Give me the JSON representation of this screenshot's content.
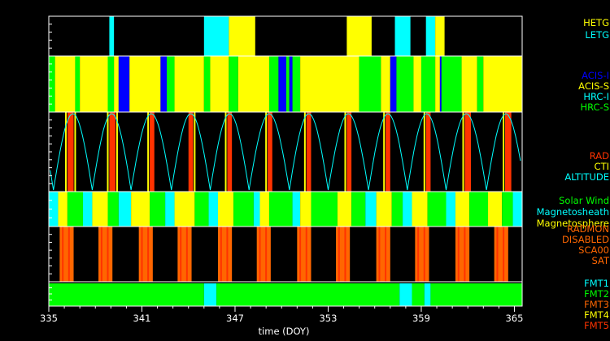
{
  "chart_data": {
    "type": "timeline",
    "xlabel": "time (DOY)",
    "xlim": [
      335,
      365.5
    ],
    "x_ticks": [
      335,
      341,
      347,
      353,
      359,
      365
    ],
    "x_tick_labels": [
      "335",
      "341",
      "347",
      "353",
      "359",
      "365"
    ],
    "panels": [
      {
        "id": "grating",
        "legend": [
          {
            "label": "HETG",
            "color": "#ffff00"
          },
          {
            "label": "LETG",
            "color": "#00ffff"
          }
        ],
        "segments": [
          {
            "start": 338.9,
            "end": 339.2,
            "label": "LETG"
          },
          {
            "start": 345.0,
            "end": 346.6,
            "label": "LETG"
          },
          {
            "start": 346.6,
            "end": 348.3,
            "label": "HETG"
          },
          {
            "start": 354.2,
            "end": 355.8,
            "label": "HETG"
          },
          {
            "start": 357.3,
            "end": 358.3,
            "label": "LETG"
          },
          {
            "start": 359.3,
            "end": 359.9,
            "label": "LETG"
          },
          {
            "start": 359.9,
            "end": 360.5,
            "label": "HETG"
          }
        ]
      },
      {
        "id": "instrument",
        "legend": [
          {
            "label": "ACIS-I",
            "color": "#0000ff"
          },
          {
            "label": "ACIS-S",
            "color": "#ffff00"
          },
          {
            "label": "HRC-I",
            "color": "#00ffff"
          },
          {
            "label": "HRC-S",
            "color": "#00ff00"
          }
        ],
        "segments": [
          {
            "start": 335.0,
            "end": 335.4,
            "label": "HRC-S"
          },
          {
            "start": 335.4,
            "end": 336.7,
            "label": "ACIS-S"
          },
          {
            "start": 336.7,
            "end": 337.0,
            "label": "HRC-S"
          },
          {
            "start": 337.0,
            "end": 338.8,
            "label": "ACIS-S"
          },
          {
            "start": 338.8,
            "end": 339.2,
            "label": "HRC-S"
          },
          {
            "start": 339.2,
            "end": 339.5,
            "label": "ACIS-S"
          },
          {
            "start": 339.5,
            "end": 340.2,
            "label": "ACIS-I"
          },
          {
            "start": 340.2,
            "end": 342.2,
            "label": "ACIS-S"
          },
          {
            "start": 342.2,
            "end": 342.6,
            "label": "ACIS-I"
          },
          {
            "start": 342.6,
            "end": 343.1,
            "label": "HRC-S"
          },
          {
            "start": 343.1,
            "end": 345.0,
            "label": "ACIS-S"
          },
          {
            "start": 345.0,
            "end": 345.4,
            "label": "HRC-S"
          },
          {
            "start": 345.4,
            "end": 346.6,
            "label": "ACIS-S"
          },
          {
            "start": 346.6,
            "end": 347.2,
            "label": "HRC-S"
          },
          {
            "start": 347.2,
            "end": 349.2,
            "label": "ACIS-S"
          },
          {
            "start": 349.2,
            "end": 349.8,
            "label": "HRC-S"
          },
          {
            "start": 349.8,
            "end": 350.3,
            "label": "ACIS-I"
          },
          {
            "start": 350.3,
            "end": 350.5,
            "label": "HRC-S"
          },
          {
            "start": 350.5,
            "end": 350.7,
            "label": "ACIS-I"
          },
          {
            "start": 350.7,
            "end": 351.2,
            "label": "HRC-S"
          },
          {
            "start": 351.2,
            "end": 355.0,
            "label": "ACIS-S"
          },
          {
            "start": 355.0,
            "end": 356.4,
            "label": "HRC-S"
          },
          {
            "start": 356.4,
            "end": 357.0,
            "label": "ACIS-S"
          },
          {
            "start": 357.0,
            "end": 357.4,
            "label": "ACIS-I"
          },
          {
            "start": 357.4,
            "end": 358.5,
            "label": "HRC-S"
          },
          {
            "start": 358.5,
            "end": 359.0,
            "label": "ACIS-S"
          },
          {
            "start": 359.0,
            "end": 359.9,
            "label": "HRC-S"
          },
          {
            "start": 359.9,
            "end": 360.2,
            "label": "ACIS-S"
          },
          {
            "start": 360.2,
            "end": 360.3,
            "label": "ACIS-I"
          },
          {
            "start": 360.3,
            "end": 361.6,
            "label": "HRC-S"
          },
          {
            "start": 361.6,
            "end": 362.6,
            "label": "ACIS-S"
          },
          {
            "start": 362.6,
            "end": 363.0,
            "label": "HRC-S"
          },
          {
            "start": 363.0,
            "end": 365.5,
            "label": "ACIS-S"
          }
        ]
      },
      {
        "id": "radiation",
        "legend": [
          {
            "label": "RAD",
            "color": "#ff3300"
          },
          {
            "label": "CTI",
            "color": "#ffff00"
          },
          {
            "label": "ALTITUDE",
            "color": "#00ffff"
          }
        ],
        "altitude_minima": [
          335.3,
          337.8,
          340.3,
          342.9,
          345.4,
          347.9,
          350.5,
          353.0,
          355.6,
          358.1,
          360.6,
          363.2
        ],
        "segments": [
          {
            "start": 336.2,
            "end": 336.6,
            "label": "RAD"
          },
          {
            "start": 338.9,
            "end": 339.3,
            "label": "RAD"
          },
          {
            "start": 341.5,
            "end": 341.8,
            "label": "RAD"
          },
          {
            "start": 344.0,
            "end": 344.3,
            "label": "RAD"
          },
          {
            "start": 346.5,
            "end": 346.8,
            "label": "RAD"
          },
          {
            "start": 349.1,
            "end": 349.4,
            "label": "RAD"
          },
          {
            "start": 351.6,
            "end": 351.9,
            "label": "RAD"
          },
          {
            "start": 354.2,
            "end": 354.5,
            "label": "RAD"
          },
          {
            "start": 356.7,
            "end": 357.0,
            "label": "RAD"
          },
          {
            "start": 359.3,
            "end": 359.6,
            "label": "RAD"
          },
          {
            "start": 361.8,
            "end": 362.2,
            "label": "RAD"
          },
          {
            "start": 364.4,
            "end": 364.8,
            "label": "RAD"
          }
        ],
        "cti_markers": [
          336.1,
          336.7,
          338.8,
          339.4,
          341.4,
          344.4,
          346.4,
          349.0,
          351.5,
          354.1,
          356.6,
          359.2,
          361.7,
          364.3
        ]
      },
      {
        "id": "region",
        "legend": [
          {
            "label": "Solar Wind",
            "color": "#00ff00"
          },
          {
            "label": "Magnetosheath",
            "color": "#00ffff"
          },
          {
            "label": "Magnetosphere",
            "color": "#ffff00"
          }
        ],
        "segments": [
          {
            "start": 335.0,
            "end": 335.6,
            "label": "Magnetosheath"
          },
          {
            "start": 335.6,
            "end": 336.2,
            "label": "Magnetosphere"
          },
          {
            "start": 336.2,
            "end": 337.2,
            "label": "Solar Wind"
          },
          {
            "start": 337.2,
            "end": 337.8,
            "label": "Magnetosheath"
          },
          {
            "start": 337.8,
            "end": 338.8,
            "label": "Magnetosphere"
          },
          {
            "start": 338.8,
            "end": 339.5,
            "label": "Solar Wind"
          },
          {
            "start": 339.5,
            "end": 340.3,
            "label": "Magnetosheath"
          },
          {
            "start": 340.3,
            "end": 341.5,
            "label": "Magnetosphere"
          },
          {
            "start": 341.5,
            "end": 342.5,
            "label": "Solar Wind"
          },
          {
            "start": 342.5,
            "end": 343.1,
            "label": "Magnetosheath"
          },
          {
            "start": 343.1,
            "end": 344.4,
            "label": "Magnetosphere"
          },
          {
            "start": 344.4,
            "end": 345.3,
            "label": "Solar Wind"
          },
          {
            "start": 345.3,
            "end": 345.9,
            "label": "Magnetosheath"
          },
          {
            "start": 345.9,
            "end": 346.9,
            "label": "Magnetosphere"
          },
          {
            "start": 346.9,
            "end": 348.2,
            "label": "Solar Wind"
          },
          {
            "start": 348.2,
            "end": 348.6,
            "label": "Magnetosheath"
          },
          {
            "start": 348.6,
            "end": 349.2,
            "label": "Magnetosphere"
          },
          {
            "start": 349.2,
            "end": 350.7,
            "label": "Solar Wind"
          },
          {
            "start": 350.7,
            "end": 351.2,
            "label": "Magnetosheath"
          },
          {
            "start": 351.2,
            "end": 351.9,
            "label": "Magnetosphere"
          },
          {
            "start": 351.9,
            "end": 353.6,
            "label": "Solar Wind"
          },
          {
            "start": 353.6,
            "end": 354.5,
            "label": "Magnetosphere"
          },
          {
            "start": 354.5,
            "end": 355.4,
            "label": "Solar Wind"
          },
          {
            "start": 355.4,
            "end": 356.1,
            "label": "Magnetosheath"
          },
          {
            "start": 356.1,
            "end": 357.1,
            "label": "Magnetosphere"
          },
          {
            "start": 357.1,
            "end": 357.8,
            "label": "Solar Wind"
          },
          {
            "start": 357.8,
            "end": 358.4,
            "label": "Magnetosheath"
          },
          {
            "start": 358.4,
            "end": 359.4,
            "label": "Magnetosphere"
          },
          {
            "start": 359.4,
            "end": 360.6,
            "label": "Solar Wind"
          },
          {
            "start": 360.6,
            "end": 361.2,
            "label": "Magnetosheath"
          },
          {
            "start": 361.2,
            "end": 362.1,
            "label": "Magnetosphere"
          },
          {
            "start": 362.1,
            "end": 363.3,
            "label": "Solar Wind"
          },
          {
            "start": 363.3,
            "end": 364.2,
            "label": "Magnetosphere"
          },
          {
            "start": 364.2,
            "end": 364.9,
            "label": "Solar Wind"
          },
          {
            "start": 364.9,
            "end": 365.5,
            "label": "Magnetosheath"
          }
        ]
      },
      {
        "id": "radmon",
        "legend": [
          {
            "label": "RADMON",
            "color": "#ff6600"
          },
          {
            "label": "DISABLED",
            "color": "#ff6600"
          },
          {
            "label": "SCA00",
            "color": "#ff6600"
          },
          {
            "label": "SAT",
            "color": "#ff6600"
          }
        ],
        "segments": [
          {
            "start": 335.7,
            "end": 336.6,
            "label": "DISABLED"
          },
          {
            "start": 338.2,
            "end": 339.1,
            "label": "DISABLED"
          },
          {
            "start": 340.8,
            "end": 341.7,
            "label": "DISABLED"
          },
          {
            "start": 343.3,
            "end": 344.2,
            "label": "DISABLED"
          },
          {
            "start": 345.9,
            "end": 346.8,
            "label": "DISABLED"
          },
          {
            "start": 348.4,
            "end": 349.3,
            "label": "DISABLED"
          },
          {
            "start": 351.0,
            "end": 351.9,
            "label": "DISABLED"
          },
          {
            "start": 353.5,
            "end": 354.4,
            "label": "DISABLED"
          },
          {
            "start": 356.1,
            "end": 357.0,
            "label": "DISABLED"
          },
          {
            "start": 358.6,
            "end": 359.5,
            "label": "DISABLED"
          },
          {
            "start": 361.2,
            "end": 362.1,
            "label": "DISABLED"
          },
          {
            "start": 363.7,
            "end": 364.6,
            "label": "DISABLED"
          }
        ],
        "markers": [
          335.9,
          336.3,
          338.4,
          338.8,
          341.0,
          341.4,
          343.5,
          343.9,
          346.1,
          346.5,
          348.6,
          349.0,
          351.2,
          351.6,
          353.7,
          354.1,
          356.3,
          356.7,
          358.8,
          359.2,
          361.4,
          361.8,
          363.9,
          364.3
        ]
      },
      {
        "id": "format",
        "legend": [
          {
            "label": "FMT1",
            "color": "#00ffff"
          },
          {
            "label": "FMT2",
            "color": "#00ff00"
          },
          {
            "label": "FMT3",
            "color": "#ff6600"
          },
          {
            "label": "FMT4",
            "color": "#ffff00"
          },
          {
            "label": "FMT5",
            "color": "#ff3300"
          }
        ],
        "segments": [
          {
            "start": 335.0,
            "end": 345.0,
            "label": "FMT2"
          },
          {
            "start": 345.0,
            "end": 345.8,
            "label": "FMT1"
          },
          {
            "start": 345.8,
            "end": 357.6,
            "label": "FMT2"
          },
          {
            "start": 357.6,
            "end": 358.4,
            "label": "FMT1"
          },
          {
            "start": 358.4,
            "end": 359.2,
            "label": "FMT2"
          },
          {
            "start": 359.2,
            "end": 359.6,
            "label": "FMT1"
          },
          {
            "start": 359.6,
            "end": 365.5,
            "label": "FMT2"
          }
        ]
      }
    ]
  }
}
